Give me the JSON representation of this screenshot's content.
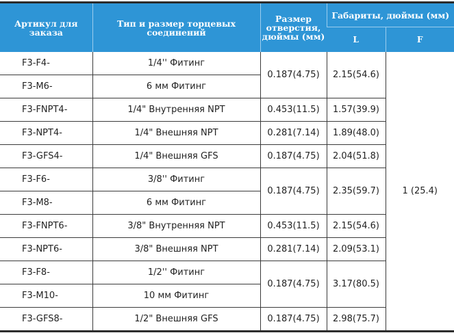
{
  "header": {
    "article": "Артикул для заказа",
    "type": "Тип и размер торцевых соединений",
    "hole": "Размер отверстия, дюймы (мм)",
    "dims": "Габариты, дюймы (мм)",
    "L": "L",
    "F": "F"
  },
  "F_value": "1 (25.4)",
  "rows": [
    {
      "article": "F3-F4-",
      "type": "1/4'' Фитинг",
      "hole": "0.187(4.75)",
      "L": "2.15(54.6)"
    },
    {
      "article": "F3-M6-",
      "type": "6 мм Фитинг",
      "hole": null,
      "L": null
    },
    {
      "article": "F3-FNPT4-",
      "type": "1/4\" Внутренняя NPT",
      "hole": "0.453(11.5)",
      "L": "1.57(39.9)"
    },
    {
      "article": "F3-NPT4-",
      "type": "1/4\" Внешняя NPT",
      "hole": "0.281(7.14)",
      "L": "1.89(48.0)"
    },
    {
      "article": "F3-GFS4-",
      "type": "1/4\" Внешняя GFS",
      "hole": "0.187(4.75)",
      "L": "2.04(51.8)"
    },
    {
      "article": "F3-F6-",
      "type": "3/8'' Фитинг",
      "hole": "0.187(4.75)",
      "L": "2.35(59.7)"
    },
    {
      "article": "F3-M8-",
      "type": "6 мм Фитинг",
      "hole": null,
      "L": null
    },
    {
      "article": "F3-FNPT6-",
      "type": "3/8\" Внутренняя NPT",
      "hole": "0.453(11.5)",
      "L": "2.15(54.6)"
    },
    {
      "article": "F3-NPT6-",
      "type": "3/8\" Внешняя NPT",
      "hole": "0.281(7.14)",
      "L": "2.09(53.1)"
    },
    {
      "article": "F3-F8-",
      "type": "1/2'' Фитинг",
      "hole": "0.187(4.75)",
      "L": "3.17(80.5)"
    },
    {
      "article": "F3-M10-",
      "type": "10 мм Фитинг",
      "hole": null,
      "L": null
    },
    {
      "article": "F3-GFS8-",
      "type": "1/2\" Внешняя GFS",
      "hole": "0.187(4.75)",
      "L": "2.98(75.7)"
    }
  ]
}
